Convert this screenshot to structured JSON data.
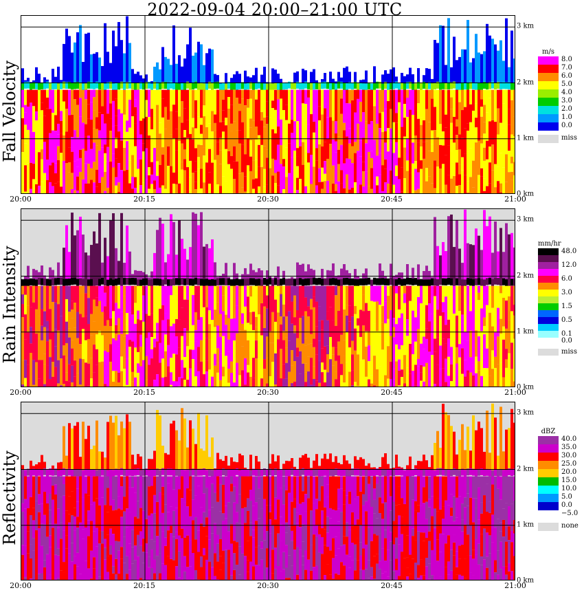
{
  "title": "2022-09-04   20:00–21:00 UTC",
  "x_ticks": [
    "20:00",
    "20:15",
    "20:30",
    "20:45",
    "21:00"
  ],
  "y_ticks": [
    "0 km",
    "1 km",
    "2 km",
    "3 km"
  ],
  "chart_data": [
    {
      "type": "heatmap",
      "ylabel": "Fall Velocity",
      "legend_unit": "m/s",
      "xlim": [
        "20:00",
        "21:00"
      ],
      "ylim_km": [
        0,
        3.2
      ],
      "grid": true,
      "legend_placement": "right",
      "legend": [
        {
          "label": "8.0",
          "color": "#ff00ff"
        },
        {
          "label": "7.0",
          "color": "#ff0000"
        },
        {
          "label": "6.0",
          "color": "#ff8c00"
        },
        {
          "label": "5.0",
          "color": "#ffff00"
        },
        {
          "label": "4.0",
          "color": "#99ee00"
        },
        {
          "label": "3.0",
          "color": "#00cc00"
        },
        {
          "label": "2.0",
          "color": "#00e0e0"
        },
        {
          "label": "1.0",
          "color": "#0099ff"
        },
        {
          "label": "0.0",
          "color": "#0000ee"
        },
        {
          "label": "miss",
          "color": "#dcdcdc"
        }
      ],
      "melting_layer_km": 1.95,
      "echo_tops_km": [
        {
          "from": "20:05",
          "to": "20:13",
          "top": 3.2
        },
        {
          "from": "20:16",
          "to": "20:23",
          "top": 3.2
        },
        {
          "from": "20:50",
          "to": "21:00",
          "top": 3.2
        }
      ]
    },
    {
      "type": "heatmap",
      "ylabel": "Rain Intensity",
      "legend_unit": "mm/hr",
      "xlim": [
        "20:00",
        "21:00"
      ],
      "ylim_km": [
        0,
        3.2
      ],
      "grid": true,
      "legend_placement": "right",
      "legend": [
        {
          "label": "48.0",
          "color": "#000000"
        },
        {
          "label": "",
          "color": "#5a0f4f"
        },
        {
          "label": "12.0",
          "color": "#a020a0"
        },
        {
          "label": "",
          "color": "#ff00ff"
        },
        {
          "label": "6.0",
          "color": "#ff0044"
        },
        {
          "label": "",
          "color": "#ff8c00"
        },
        {
          "label": "3.0",
          "color": "#ffff00"
        },
        {
          "label": "",
          "color": "#bbee33"
        },
        {
          "label": "1.5",
          "color": "#00cc00"
        },
        {
          "label": "",
          "color": "#0066ff"
        },
        {
          "label": "0.5",
          "color": "#0000dd"
        },
        {
          "label": "",
          "color": "#00ccff"
        },
        {
          "label": "0.1",
          "color": "#99ffff"
        },
        {
          "label": "0.0",
          "color": "#ffffff"
        },
        {
          "label": "miss",
          "color": "#dcdcdc"
        }
      ],
      "melting_layer_km": 1.9,
      "echo_tops_km": [
        {
          "from": "20:05",
          "to": "20:13",
          "top": 3.2
        },
        {
          "from": "20:16",
          "to": "20:23",
          "top": 3.2
        },
        {
          "from": "20:50",
          "to": "21:00",
          "top": 3.2
        }
      ]
    },
    {
      "type": "heatmap",
      "ylabel": "Reflectivity",
      "legend_unit": "dBZ",
      "xlim": [
        "20:00",
        "21:00"
      ],
      "ylim_km": [
        0,
        3.2
      ],
      "grid": true,
      "legend_placement": "right",
      "legend": [
        {
          "label": "40.0",
          "color": "#9b30a6"
        },
        {
          "label": "35.0",
          "color": "#cc00cc"
        },
        {
          "label": "30.0",
          "color": "#ff0000"
        },
        {
          "label": "25.0",
          "color": "#ff8c00"
        },
        {
          "label": "20.0",
          "color": "#ffcc00"
        },
        {
          "label": "15.0",
          "color": "#00bb00"
        },
        {
          "label": "10.0",
          "color": "#00ffff"
        },
        {
          "label": "5.0",
          "color": "#0099ff"
        },
        {
          "label": "0.0",
          "color": "#0000cc"
        },
        {
          "label": "−5.0",
          "color": "#ffffff"
        },
        {
          "label": "none",
          "color": "#dcdcdc"
        }
      ],
      "melting_layer_km": 1.95,
      "echo_tops_km": [
        {
          "from": "20:05",
          "to": "20:13",
          "top": 3.2
        },
        {
          "from": "20:16",
          "to": "20:23",
          "top": 3.2
        },
        {
          "from": "20:50",
          "to": "21:00",
          "top": 3.2
        }
      ]
    }
  ]
}
